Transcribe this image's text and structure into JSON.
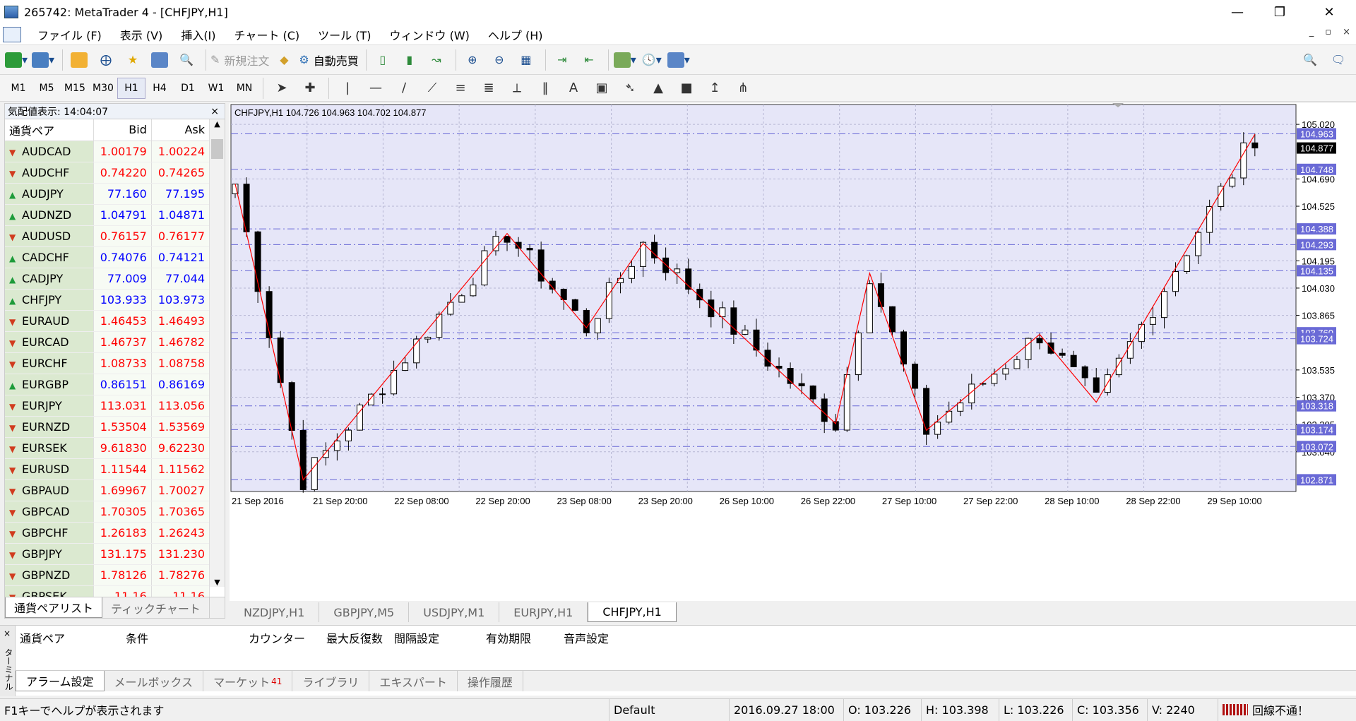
{
  "window": {
    "title": "265742: MetaTrader 4 - [CHFJPY,H1]",
    "minimize": "—",
    "restore": "❐",
    "close": "✕"
  },
  "menu": [
    "ファイル (F)",
    "表示 (V)",
    "挿入(I)",
    "チャート (C)",
    "ツール (T)",
    "ウィンドウ (W)",
    "ヘルプ (H)"
  ],
  "mdi_buttons": [
    "_",
    "▫",
    "×"
  ],
  "toolbar1": {
    "new_order": "新規注文",
    "auto_trade": "自動売買"
  },
  "timeframes": [
    "M1",
    "M5",
    "M15",
    "M30",
    "H1",
    "H4",
    "D1",
    "W1",
    "MN"
  ],
  "active_timeframe": "H1",
  "market_watch": {
    "title": "気配値表示: 14:04:07",
    "close": "×",
    "col_symbol": "通貨ペア",
    "col_bid": "Bid",
    "col_ask": "Ask",
    "rows": [
      {
        "s": "AUDCAD",
        "bid": "1.00179",
        "ask": "1.00224",
        "dir": "dn"
      },
      {
        "s": "AUDCHF",
        "bid": "0.74220",
        "ask": "0.74265",
        "dir": "dn"
      },
      {
        "s": "AUDJPY",
        "bid": "77.160",
        "ask": "77.195",
        "dir": "up"
      },
      {
        "s": "AUDNZD",
        "bid": "1.04791",
        "ask": "1.04871",
        "dir": "up"
      },
      {
        "s": "AUDUSD",
        "bid": "0.76157",
        "ask": "0.76177",
        "dir": "dn"
      },
      {
        "s": "CADCHF",
        "bid": "0.74076",
        "ask": "0.74121",
        "dir": "up"
      },
      {
        "s": "CADJPY",
        "bid": "77.009",
        "ask": "77.044",
        "dir": "up"
      },
      {
        "s": "CHFJPY",
        "bid": "103.933",
        "ask": "103.973",
        "dir": "up"
      },
      {
        "s": "EURAUD",
        "bid": "1.46453",
        "ask": "1.46493",
        "dir": "dn"
      },
      {
        "s": "EURCAD",
        "bid": "1.46737",
        "ask": "1.46782",
        "dir": "dn"
      },
      {
        "s": "EURCHF",
        "bid": "1.08733",
        "ask": "1.08758",
        "dir": "dn"
      },
      {
        "s": "EURGBP",
        "bid": "0.86151",
        "ask": "0.86169",
        "dir": "up"
      },
      {
        "s": "EURJPY",
        "bid": "113.031",
        "ask": "113.056",
        "dir": "dn"
      },
      {
        "s": "EURNZD",
        "bid": "1.53504",
        "ask": "1.53569",
        "dir": "dn"
      },
      {
        "s": "EURSEK",
        "bid": "9.61830",
        "ask": "9.62230",
        "dir": "dn"
      },
      {
        "s": "EURUSD",
        "bid": "1.11544",
        "ask": "1.11562",
        "dir": "dn"
      },
      {
        "s": "GBPAUD",
        "bid": "1.69967",
        "ask": "1.70027",
        "dir": "dn"
      },
      {
        "s": "GBPCAD",
        "bid": "1.70305",
        "ask": "1.70365",
        "dir": "dn"
      },
      {
        "s": "GBPCHF",
        "bid": "1.26183",
        "ask": "1.26243",
        "dir": "dn"
      },
      {
        "s": "GBPJPY",
        "bid": "131.175",
        "ask": "131.230",
        "dir": "dn"
      },
      {
        "s": "GBPNZD",
        "bid": "1.78126",
        "ask": "1.78276",
        "dir": "dn"
      },
      {
        "s": "GBPSEK",
        "bid": "11.16",
        "ask": "11.16",
        "dir": "dn"
      }
    ],
    "tabs": [
      "通貨ペアリスト",
      "ティックチャート"
    ]
  },
  "chart": {
    "info": "CHFJPY,H1  104.726 104.963 104.702 104.877",
    "current_price": "104.877",
    "price_ticks": [
      "105.020",
      "104.690",
      "104.525",
      "104.195",
      "104.030",
      "103.865",
      "103.535",
      "103.370",
      "103.205",
      "103.040"
    ],
    "hlines": [
      "104.963",
      "104.748",
      "104.388",
      "104.293",
      "104.135",
      "103.760",
      "103.724",
      "103.318",
      "103.174",
      "103.072",
      "102.871"
    ],
    "time_labels": [
      "21 Sep 2016",
      "21 Sep 20:00",
      "22 Sep 08:00",
      "22 Sep 20:00",
      "23 Sep 08:00",
      "23 Sep 20:00",
      "26 Sep 10:00",
      "26 Sep 22:00",
      "27 Sep 10:00",
      "27 Sep 22:00",
      "28 Sep 10:00",
      "28 Sep 22:00",
      "29 Sep 10:00"
    ],
    "zigzag": [
      [
        0,
        104.66
      ],
      [
        6,
        102.87
      ],
      [
        24,
        104.36
      ],
      [
        31,
        103.79
      ],
      [
        36,
        104.3
      ],
      [
        53,
        103.21
      ],
      [
        56,
        104.12
      ],
      [
        61,
        103.17
      ],
      [
        71,
        103.75
      ],
      [
        76,
        103.34
      ],
      [
        90,
        104.96
      ]
    ]
  },
  "chart_tabs": [
    "NZDJPY,H1",
    "GBPJPY,M5",
    "USDJPY,M1",
    "EURJPY,H1",
    "CHFJPY,H1"
  ],
  "active_chart_tab": "CHFJPY,H1",
  "terminal": {
    "side_label": "ターミナル",
    "close": "×",
    "columns": [
      "通貨ペア",
      "条件",
      "カウンター",
      "最大反復数",
      "間隔設定",
      "有効期限",
      "音声設定"
    ],
    "tabs": [
      "アラーム設定",
      "メールボックス",
      "マーケット",
      "ライブラリ",
      "エキスパート",
      "操作履歴"
    ],
    "market_badge": "41"
  },
  "status": {
    "help": "F1キーでヘルプが表示されます",
    "profile": "Default",
    "datetime": "2016.09.27 18:00",
    "open": "O: 103.226",
    "high": "H: 103.398",
    "low": "L: 103.226",
    "close": "C: 103.356",
    "volume": "V: 2240",
    "connection": "回線不通！"
  },
  "colors": {
    "chart_bg": "#e6e6f8",
    "grid": "#b7b7d3",
    "line_label_bg": "#6a6ad6",
    "zigzag": "#ff0000",
    "candle": "#000000"
  }
}
